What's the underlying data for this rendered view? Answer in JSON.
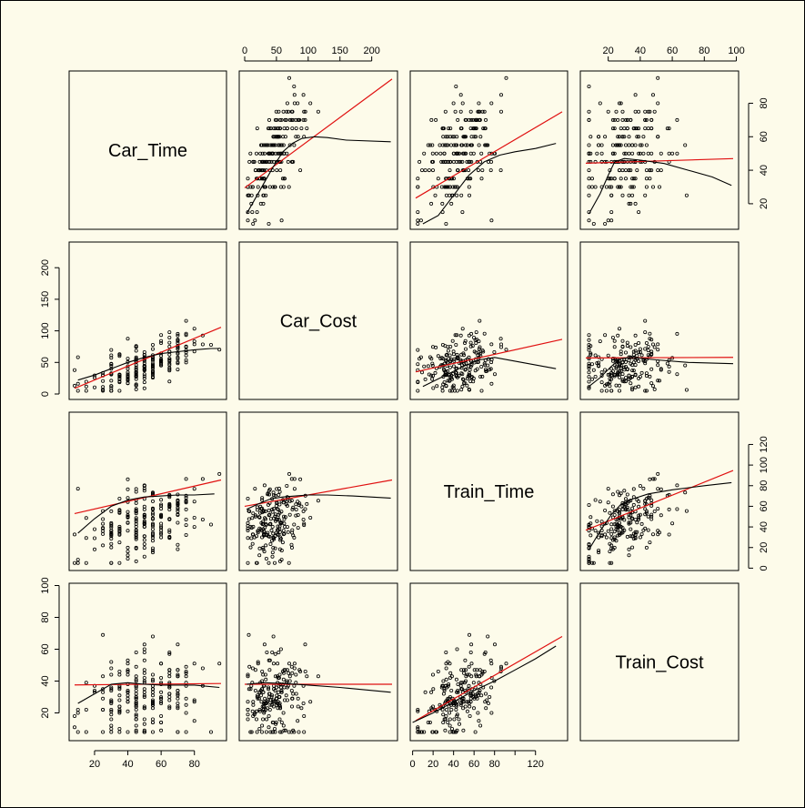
{
  "chart_data": {
    "type": "scatter",
    "plot_kind": "scatterplot-matrix",
    "variables": [
      "Car_Time",
      "Car_Cost",
      "Train_Time",
      "Train_Cost"
    ],
    "ranges": {
      "Car_Time": [
        8,
        96
      ],
      "Car_Cost": [
        0,
        232
      ],
      "Train_Time": [
        3,
        146
      ],
      "Train_Cost": [
        6,
        98
      ]
    },
    "ticks": {
      "Car_Time": {
        "values": [
          20,
          40,
          60,
          80
        ],
        "labels": [
          "20",
          "40",
          "60",
          "80"
        ]
      },
      "Car_Cost": {
        "values": [
          0,
          50,
          100,
          150,
          200
        ],
        "labels": [
          "0",
          "50",
          "100",
          "150",
          "200"
        ]
      },
      "Train_Time": {
        "values": [
          0,
          20,
          40,
          60,
          80,
          100,
          120
        ],
        "labels": [
          "0",
          "20",
          "40",
          "60",
          "80",
          "100",
          "120"
        ]
      },
      "Train_Time_bottom": {
        "values": [
          0,
          20,
          40,
          60,
          80,
          100,
          120
        ],
        "labels": [
          "0",
          "20",
          "40",
          "60",
          "80",
          "",
          "120"
        ]
      },
      "Train_Cost": {
        "values": [
          20,
          40,
          60,
          80,
          100
        ],
        "labels": [
          "20",
          "40",
          "60",
          "80",
          "100"
        ]
      }
    },
    "regression_lines": [
      {
        "x": "Car_Cost",
        "y": "Car_Time",
        "intercept": 29.5,
        "slope": 0.28
      },
      {
        "x": "Train_Time",
        "y": "Car_Time",
        "intercept": 22.3,
        "slope": 0.36
      },
      {
        "x": "Train_Cost",
        "y": "Car_Time",
        "intercept": 44,
        "slope": 0.03
      },
      {
        "x": "Car_Time",
        "y": "Car_Cost",
        "intercept": 0.1,
        "slope": 1.1
      },
      {
        "x": "Train_Time",
        "y": "Car_Cost",
        "intercept": 34,
        "slope": 0.36
      },
      {
        "x": "Train_Cost",
        "y": "Car_Cost",
        "intercept": 57,
        "slope": 0.01
      },
      {
        "x": "Car_Time",
        "y": "Train_Time",
        "intercept": 50,
        "slope": 0.37
      },
      {
        "x": "Car_Cost",
        "y": "Train_Time",
        "intercept": 60,
        "slope": 0.11
      },
      {
        "x": "Train_Cost",
        "y": "Train_Time",
        "intercept": 33,
        "slope": 0.63
      },
      {
        "x": "Car_Time",
        "y": "Train_Cost",
        "intercept": 37.5,
        "slope": 0.01
      },
      {
        "x": "Car_Cost",
        "y": "Train_Cost",
        "intercept": 38,
        "slope": 0.0
      },
      {
        "x": "Train_Time",
        "y": "Train_Cost",
        "intercept": 14,
        "slope": 0.37
      }
    ],
    "smooth_lines": [
      {
        "x": "Car_Cost",
        "y": "Car_Time",
        "points": [
          [
            3,
            14
          ],
          [
            15,
            22
          ],
          [
            30,
            32
          ],
          [
            45,
            42
          ],
          [
            60,
            51
          ],
          [
            75,
            56
          ],
          [
            90,
            59
          ],
          [
            110,
            60
          ],
          [
            130,
            59.5
          ],
          [
            160,
            58
          ],
          [
            230,
            57
          ]
        ]
      },
      {
        "x": "Train_Time",
        "y": "Car_Time",
        "points": [
          [
            10,
            8
          ],
          [
            25,
            13
          ],
          [
            40,
            25
          ],
          [
            55,
            37
          ],
          [
            70,
            45
          ],
          [
            85,
            49
          ],
          [
            100,
            51
          ],
          [
            120,
            53
          ],
          [
            140,
            56
          ]
        ]
      },
      {
        "x": "Train_Cost",
        "y": "Car_Time",
        "points": [
          [
            8,
            14
          ],
          [
            15,
            26
          ],
          [
            20,
            37
          ],
          [
            24,
            45
          ],
          [
            30,
            47
          ],
          [
            40,
            46
          ],
          [
            55,
            44
          ],
          [
            70,
            40
          ],
          [
            85,
            36
          ],
          [
            97,
            31
          ]
        ]
      },
      {
        "x": "Car_Time",
        "y": "Car_Cost",
        "points": [
          [
            10,
            22
          ],
          [
            20,
            30
          ],
          [
            30,
            40
          ],
          [
            40,
            50
          ],
          [
            50,
            58
          ],
          [
            60,
            64
          ],
          [
            70,
            67
          ],
          [
            80,
            70
          ],
          [
            90,
            72
          ],
          [
            95,
            72
          ]
        ]
      },
      {
        "x": "Train_Time",
        "y": "Car_Cost",
        "points": [
          [
            10,
            12
          ],
          [
            30,
            28
          ],
          [
            50,
            44
          ],
          [
            65,
            54
          ],
          [
            80,
            58
          ],
          [
            100,
            52
          ],
          [
            120,
            46
          ],
          [
            140,
            40
          ]
        ]
      },
      {
        "x": "Train_Cost",
        "y": "Car_Cost",
        "points": [
          [
            8,
            12
          ],
          [
            15,
            26
          ],
          [
            22,
            44
          ],
          [
            28,
            56
          ],
          [
            35,
            58
          ],
          [
            50,
            54
          ],
          [
            70,
            50
          ],
          [
            98,
            48
          ]
        ]
      },
      {
        "x": "Car_Time",
        "y": "Train_Time",
        "points": [
          [
            10,
            34
          ],
          [
            20,
            48
          ],
          [
            30,
            60
          ],
          [
            40,
            66
          ],
          [
            50,
            69
          ],
          [
            60,
            70
          ],
          [
            70,
            71
          ],
          [
            80,
            71
          ],
          [
            92,
            72
          ]
        ]
      },
      {
        "x": "Car_Cost",
        "y": "Train_Time",
        "points": [
          [
            3,
            57
          ],
          [
            20,
            62
          ],
          [
            40,
            67
          ],
          [
            60,
            69
          ],
          [
            80,
            70
          ],
          [
            100,
            71
          ],
          [
            130,
            71
          ],
          [
            170,
            70
          ],
          [
            230,
            68
          ]
        ]
      },
      {
        "x": "Train_Cost",
        "y": "Train_Time",
        "points": [
          [
            8,
            18
          ],
          [
            15,
            36
          ],
          [
            22,
            52
          ],
          [
            28,
            62
          ],
          [
            35,
            67
          ],
          [
            45,
            72
          ],
          [
            60,
            76
          ],
          [
            80,
            80
          ],
          [
            97,
            83
          ]
        ]
      },
      {
        "x": "Car_Time",
        "y": "Train_Cost",
        "points": [
          [
            10,
            26
          ],
          [
            20,
            32
          ],
          [
            30,
            38
          ],
          [
            40,
            39
          ],
          [
            50,
            38
          ],
          [
            60,
            37.5
          ],
          [
            70,
            37.5
          ],
          [
            80,
            37.5
          ],
          [
            95,
            36
          ]
        ]
      },
      {
        "x": "Car_Cost",
        "y": "Train_Cost",
        "points": [
          [
            3,
            38
          ],
          [
            30,
            39
          ],
          [
            60,
            38.5
          ],
          [
            100,
            37.5
          ],
          [
            150,
            36
          ],
          [
            230,
            33
          ]
        ]
      },
      {
        "x": "Train_Time",
        "y": "Train_Cost",
        "points": [
          [
            0,
            14
          ],
          [
            20,
            20
          ],
          [
            40,
            27
          ],
          [
            60,
            34
          ],
          [
            80,
            40
          ],
          [
            100,
            47
          ],
          [
            120,
            54
          ],
          [
            140,
            62
          ]
        ]
      }
    ],
    "n_points": 210,
    "seed": 7
  },
  "colors": {
    "background": "#fdfbea",
    "points": "#000000",
    "regression": "#e01010",
    "smooth": "#000000"
  }
}
